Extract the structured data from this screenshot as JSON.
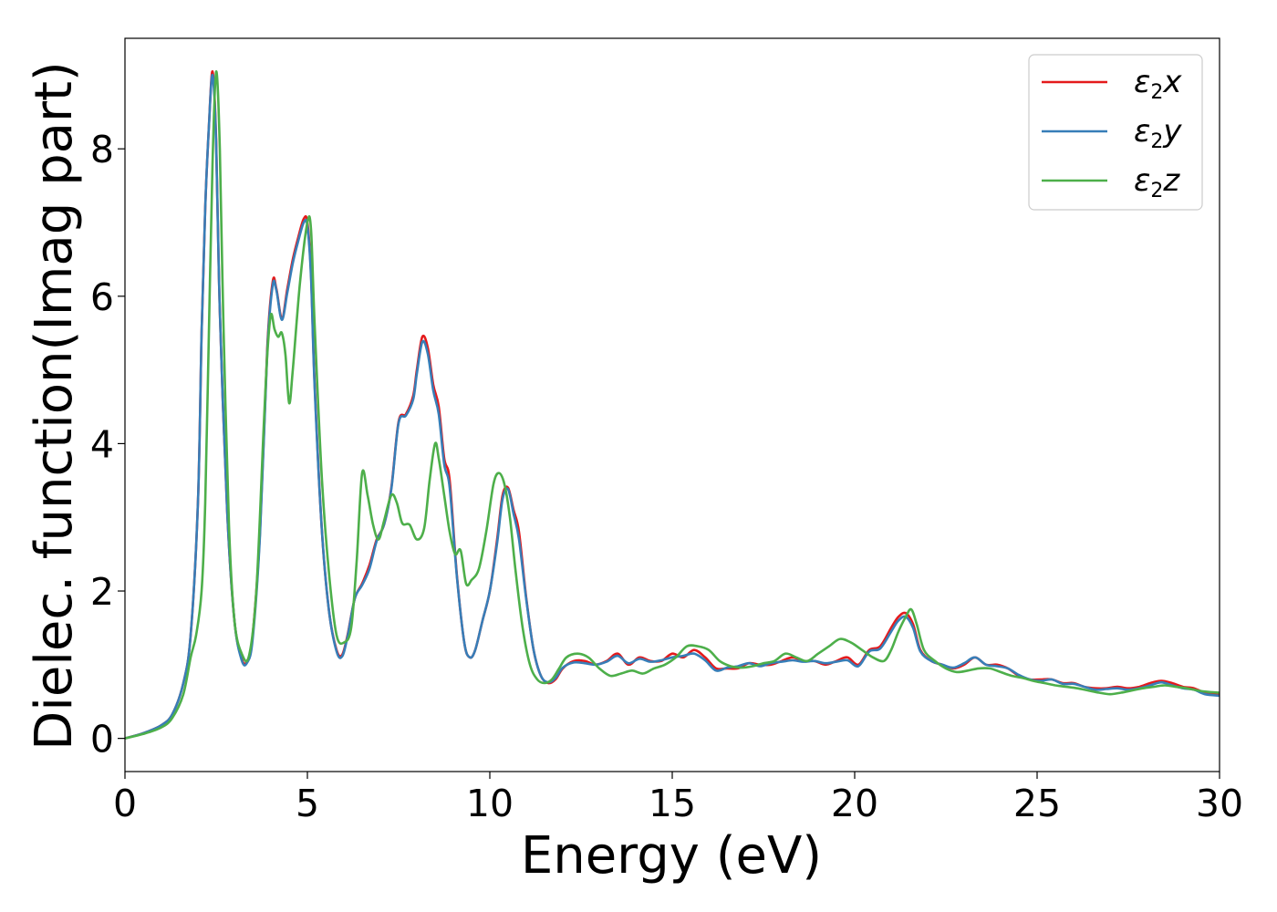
{
  "chart_data": {
    "type": "line",
    "title": "",
    "xlabel": "Energy (eV)",
    "ylabel": "Dielec. function(Imag part)",
    "xlim": [
      0,
      30
    ],
    "ylim": [
      -0.45,
      9.5
    ],
    "xticks": [
      0,
      5,
      10,
      15,
      20,
      25,
      30
    ],
    "yticks": [
      0,
      2,
      4,
      6,
      8
    ],
    "grid": false,
    "legend_position": "top-right",
    "series": [
      {
        "name": "ε2x",
        "symbol": "ε",
        "sub": "2",
        "axis": "x",
        "color": "#e41a1c",
        "x": [
          0,
          0.5,
          1,
          1.3,
          1.6,
          1.8,
          2.0,
          2.1,
          2.2,
          2.3,
          2.4,
          2.5,
          2.6,
          2.8,
          3.0,
          3.2,
          3.35,
          3.5,
          3.7,
          3.9,
          4.05,
          4.15,
          4.3,
          4.45,
          4.6,
          4.75,
          4.9,
          5.0,
          5.1,
          5.2,
          5.4,
          5.6,
          5.8,
          5.95,
          6.1,
          6.3,
          6.5,
          6.7,
          6.9,
          7.1,
          7.3,
          7.5,
          7.7,
          7.9,
          8.0,
          8.15,
          8.3,
          8.45,
          8.6,
          8.75,
          8.9,
          9.1,
          9.3,
          9.45,
          9.6,
          9.8,
          10.0,
          10.2,
          10.35,
          10.5,
          10.65,
          10.8,
          11.0,
          11.2,
          11.4,
          11.6,
          11.8,
          12.0,
          12.3,
          12.6,
          12.9,
          13.2,
          13.5,
          13.8,
          14.1,
          14.4,
          14.7,
          15.0,
          15.3,
          15.6,
          15.9,
          16.2,
          16.5,
          16.8,
          17.1,
          17.4,
          17.7,
          18.0,
          18.3,
          18.6,
          18.9,
          19.2,
          19.5,
          19.8,
          20.1,
          20.4,
          20.7,
          21.0,
          21.2,
          21.4,
          21.6,
          21.8,
          22.1,
          22.4,
          22.7,
          23.0,
          23.3,
          23.6,
          23.9,
          24.2,
          24.5,
          24.8,
          25.1,
          25.4,
          25.7,
          26.0,
          26.3,
          26.6,
          26.9,
          27.2,
          27.5,
          27.8,
          28.1,
          28.4,
          28.7,
          29.0,
          29.3,
          29.6,
          30.0
        ],
        "y": [
          0,
          0.07,
          0.18,
          0.33,
          0.75,
          1.4,
          3.2,
          5.5,
          7.2,
          8.3,
          9.05,
          8.1,
          5.8,
          3.1,
          1.6,
          1.08,
          1.05,
          1.4,
          2.8,
          5.3,
          6.2,
          6.1,
          5.7,
          6.1,
          6.5,
          6.8,
          7.05,
          7.0,
          6.3,
          4.8,
          2.8,
          1.7,
          1.2,
          1.13,
          1.4,
          1.9,
          2.1,
          2.35,
          2.7,
          2.9,
          3.4,
          4.3,
          4.4,
          4.65,
          5.0,
          5.45,
          5.3,
          4.8,
          4.5,
          3.8,
          3.5,
          2.2,
          1.3,
          1.1,
          1.2,
          1.6,
          2.0,
          2.7,
          3.3,
          3.4,
          3.1,
          2.8,
          1.9,
          1.2,
          0.85,
          0.75,
          0.8,
          0.95,
          1.05,
          1.05,
          1.0,
          1.05,
          1.15,
          1.0,
          1.1,
          1.05,
          1.05,
          1.15,
          1.1,
          1.2,
          1.1,
          0.95,
          0.95,
          0.95,
          1.02,
          1.0,
          1.0,
          1.05,
          1.1,
          1.05,
          1.05,
          1.0,
          1.05,
          1.1,
          1.0,
          1.2,
          1.25,
          1.5,
          1.65,
          1.7,
          1.55,
          1.2,
          1.05,
          1.0,
          0.95,
          1.0,
          1.1,
          1.0,
          1.0,
          0.95,
          0.85,
          0.8,
          0.8,
          0.8,
          0.75,
          0.75,
          0.7,
          0.68,
          0.68,
          0.7,
          0.68,
          0.7,
          0.75,
          0.78,
          0.75,
          0.7,
          0.68,
          0.62,
          0.6
        ]
      },
      {
        "name": "ε2y",
        "symbol": "ε",
        "sub": "2",
        "axis": "y",
        "color": "#377eb8",
        "x": [
          0,
          0.5,
          1,
          1.3,
          1.6,
          1.8,
          2.0,
          2.1,
          2.2,
          2.3,
          2.4,
          2.5,
          2.6,
          2.8,
          3.0,
          3.2,
          3.35,
          3.5,
          3.7,
          3.9,
          4.05,
          4.15,
          4.3,
          4.45,
          4.6,
          4.75,
          4.9,
          5.0,
          5.1,
          5.2,
          5.4,
          5.6,
          5.8,
          5.95,
          6.1,
          6.3,
          6.5,
          6.7,
          6.9,
          7.1,
          7.3,
          7.5,
          7.7,
          7.9,
          8.0,
          8.15,
          8.3,
          8.45,
          8.6,
          8.75,
          8.9,
          9.1,
          9.3,
          9.45,
          9.6,
          9.8,
          10.0,
          10.2,
          10.35,
          10.5,
          10.65,
          10.8,
          11.0,
          11.2,
          11.4,
          11.6,
          11.8,
          12.0,
          12.3,
          12.6,
          12.9,
          13.2,
          13.5,
          13.8,
          14.1,
          14.4,
          14.7,
          15.0,
          15.3,
          15.6,
          15.9,
          16.2,
          16.5,
          16.8,
          17.1,
          17.4,
          17.7,
          18.0,
          18.3,
          18.6,
          18.9,
          19.2,
          19.5,
          19.8,
          20.1,
          20.4,
          20.7,
          21.0,
          21.2,
          21.4,
          21.6,
          21.8,
          22.1,
          22.4,
          22.7,
          23.0,
          23.3,
          23.6,
          23.9,
          24.2,
          24.5,
          24.8,
          25.1,
          25.4,
          25.7,
          26.0,
          26.3,
          26.6,
          26.9,
          27.2,
          27.5,
          27.8,
          28.1,
          28.4,
          28.7,
          29.0,
          29.3,
          29.6,
          30.0
        ],
        "y": [
          0,
          0.07,
          0.18,
          0.33,
          0.75,
          1.4,
          3.2,
          5.5,
          7.2,
          8.3,
          9.0,
          8.05,
          5.8,
          3.1,
          1.6,
          1.06,
          1.03,
          1.35,
          2.75,
          5.25,
          6.15,
          6.08,
          5.68,
          6.05,
          6.45,
          6.75,
          7.0,
          6.95,
          6.25,
          4.75,
          2.8,
          1.7,
          1.18,
          1.11,
          1.38,
          1.9,
          2.08,
          2.3,
          2.68,
          2.9,
          3.38,
          4.28,
          4.38,
          4.6,
          4.95,
          5.38,
          5.22,
          4.72,
          4.4,
          3.72,
          3.4,
          2.18,
          1.3,
          1.1,
          1.2,
          1.6,
          2.0,
          2.65,
          3.25,
          3.38,
          3.05,
          2.7,
          1.88,
          1.2,
          0.85,
          0.76,
          0.82,
          0.96,
          1.03,
          1.02,
          1.0,
          1.04,
          1.12,
          1.02,
          1.08,
          1.04,
          1.06,
          1.1,
          1.12,
          1.15,
          1.06,
          0.92,
          0.96,
          0.98,
          1.02,
          0.98,
          1.02,
          1.04,
          1.06,
          1.04,
          1.05,
          1.02,
          1.04,
          1.06,
          0.98,
          1.18,
          1.22,
          1.45,
          1.6,
          1.65,
          1.5,
          1.18,
          1.05,
          1.0,
          0.96,
          1.02,
          1.1,
          1.0,
          0.98,
          0.95,
          0.86,
          0.8,
          0.78,
          0.8,
          0.74,
          0.74,
          0.7,
          0.66,
          0.67,
          0.68,
          0.66,
          0.68,
          0.72,
          0.76,
          0.72,
          0.68,
          0.66,
          0.6,
          0.58
        ]
      },
      {
        "name": "ε2z",
        "symbol": "ε",
        "sub": "2",
        "axis": "z",
        "color": "#4daf4a",
        "x": [
          0,
          0.5,
          1,
          1.3,
          1.6,
          1.8,
          1.95,
          2.1,
          2.2,
          2.3,
          2.4,
          2.5,
          2.6,
          2.7,
          2.85,
          3.0,
          3.2,
          3.4,
          3.6,
          3.8,
          3.9,
          4.0,
          4.1,
          4.2,
          4.3,
          4.4,
          4.5,
          4.6,
          4.8,
          5.0,
          5.1,
          5.2,
          5.4,
          5.6,
          5.8,
          6.0,
          6.2,
          6.35,
          6.5,
          6.65,
          6.8,
          6.95,
          7.1,
          7.3,
          7.45,
          7.6,
          7.8,
          8.0,
          8.2,
          8.35,
          8.5,
          8.6,
          8.75,
          8.9,
          9.05,
          9.2,
          9.35,
          9.5,
          9.7,
          9.9,
          10.1,
          10.25,
          10.4,
          10.55,
          10.7,
          10.9,
          11.1,
          11.3,
          11.5,
          11.7,
          11.9,
          12.1,
          12.4,
          12.7,
          13.0,
          13.3,
          13.6,
          13.9,
          14.2,
          14.5,
          14.8,
          15.1,
          15.4,
          15.7,
          16.0,
          16.3,
          16.6,
          16.9,
          17.2,
          17.5,
          17.8,
          18.1,
          18.4,
          18.7,
          19.0,
          19.3,
          19.6,
          19.9,
          20.2,
          20.5,
          20.8,
          21.0,
          21.2,
          21.4,
          21.55,
          21.7,
          21.9,
          22.2,
          22.5,
          22.8,
          23.1,
          23.4,
          23.7,
          24.0,
          24.3,
          24.6,
          24.9,
          25.2,
          25.5,
          25.8,
          26.1,
          26.4,
          26.7,
          27.0,
          27.3,
          27.6,
          27.9,
          28.2,
          28.5,
          28.8,
          29.1,
          29.4,
          29.7,
          30.0
        ],
        "y": [
          0,
          0.06,
          0.15,
          0.28,
          0.6,
          1.1,
          1.4,
          2.0,
          3.2,
          5.5,
          7.8,
          9.05,
          8.0,
          5.6,
          2.9,
          1.6,
          1.15,
          1.12,
          2.0,
          4.2,
          5.2,
          5.75,
          5.55,
          5.45,
          5.5,
          5.2,
          4.55,
          5.0,
          6.2,
          7.0,
          6.9,
          5.6,
          3.5,
          2.2,
          1.4,
          1.3,
          1.5,
          2.4,
          3.6,
          3.3,
          2.9,
          2.7,
          2.95,
          3.3,
          3.2,
          2.92,
          2.9,
          2.7,
          2.85,
          3.5,
          4.0,
          3.8,
          3.3,
          2.8,
          2.5,
          2.55,
          2.1,
          2.15,
          2.3,
          2.8,
          3.45,
          3.6,
          3.45,
          3.0,
          2.3,
          1.5,
          1.0,
          0.8,
          0.75,
          0.8,
          0.95,
          1.1,
          1.15,
          1.1,
          0.95,
          0.85,
          0.88,
          0.92,
          0.88,
          0.95,
          1.0,
          1.1,
          1.25,
          1.25,
          1.2,
          1.05,
          0.98,
          0.96,
          0.98,
          1.02,
          1.05,
          1.15,
          1.1,
          1.05,
          1.15,
          1.25,
          1.35,
          1.3,
          1.2,
          1.1,
          1.05,
          1.2,
          1.45,
          1.65,
          1.75,
          1.55,
          1.2,
          1.05,
          0.95,
          0.9,
          0.92,
          0.95,
          0.95,
          0.9,
          0.85,
          0.82,
          0.78,
          0.75,
          0.72,
          0.7,
          0.68,
          0.65,
          0.62,
          0.6,
          0.62,
          0.65,
          0.68,
          0.7,
          0.72,
          0.7,
          0.68,
          0.65,
          0.63,
          0.62
        ]
      }
    ]
  }
}
